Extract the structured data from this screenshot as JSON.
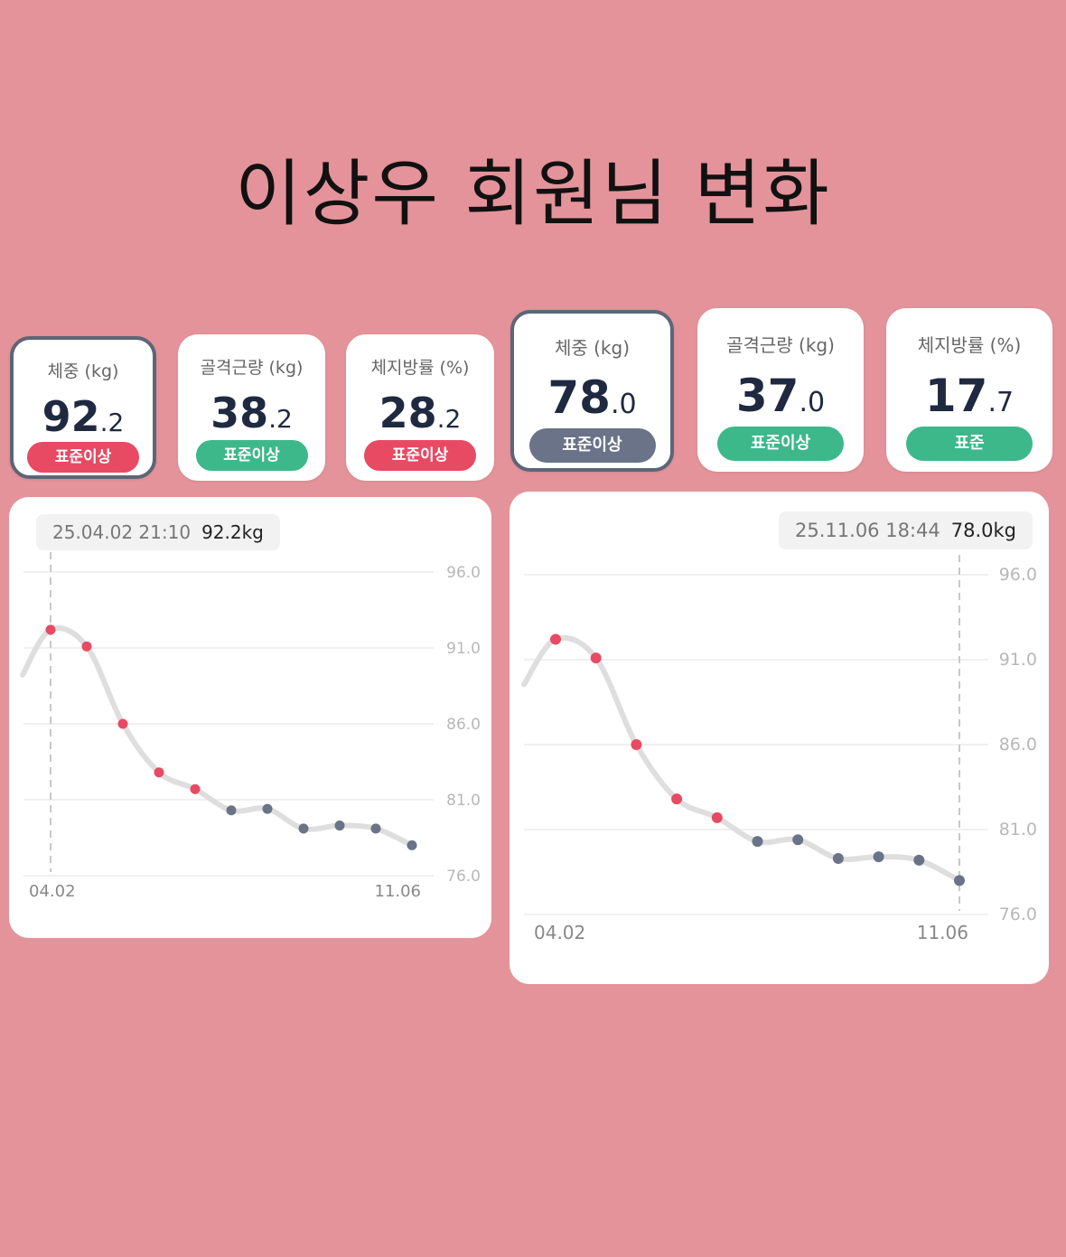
{
  "title": "이상우 회원님 변화",
  "colors": {
    "background": "#e4939a",
    "high": "#e84a63",
    "ok": "#3db88b",
    "neutral": "#6a7387",
    "line": "#dcdcdc"
  },
  "left": {
    "metrics": [
      {
        "label": "체중 (kg)",
        "int": "92",
        "dec": ".2",
        "badge": "표준이상",
        "badge_color": "#e84a63",
        "selected": true
      },
      {
        "label": "골격근량 (kg)",
        "int": "38",
        "dec": ".2",
        "badge": "표준이상",
        "badge_color": "#3db88b",
        "selected": false
      },
      {
        "label": "체지방률 (%)",
        "int": "28",
        "dec": ".2",
        "badge": "표준이상",
        "badge_color": "#e84a63",
        "selected": false
      }
    ],
    "tooltip": {
      "datetime": "25.04.02 21:10",
      "value": "92.2kg"
    },
    "x_start": "04.02",
    "x_end": "11.06",
    "y_ticks": [
      "96.0",
      "91.0",
      "86.0",
      "81.0",
      "76.0"
    ]
  },
  "right": {
    "metrics": [
      {
        "label": "체중 (kg)",
        "int": "78",
        "dec": ".0",
        "badge": "표준이상",
        "badge_color": "#6a7387",
        "selected": true
      },
      {
        "label": "골격근량 (kg)",
        "int": "37",
        "dec": ".0",
        "badge": "표준이상",
        "badge_color": "#3db88b",
        "selected": false
      },
      {
        "label": "체지방률 (%)",
        "int": "17",
        "dec": ".7",
        "badge": "표준",
        "badge_color": "#3db88b",
        "selected": false
      }
    ],
    "tooltip": {
      "datetime": "25.11.06 18:44",
      "value": "78.0kg"
    },
    "x_start": "04.02",
    "x_end": "11.06",
    "y_ticks": [
      "96.0",
      "91.0",
      "86.0",
      "81.0",
      "76.0"
    ]
  },
  "chart_data": [
    {
      "type": "line",
      "ylim": [
        76,
        96
      ],
      "y_ticks": [
        96,
        91,
        86,
        81,
        76
      ],
      "x_labels": [
        "04.02",
        "11.06"
      ],
      "selected_index": 0,
      "values": [
        92.2,
        91.1,
        86.0,
        82.8,
        81.7,
        80.3,
        80.4,
        79.1,
        79.3,
        79.1,
        78.0
      ],
      "point_colors": [
        "#e84a63",
        "#e84a63",
        "#e84a63",
        "#e84a63",
        "#e84a63",
        "#6a7387",
        "#6a7387",
        "#6a7387",
        "#6a7387",
        "#6a7387",
        "#6a7387"
      ]
    },
    {
      "type": "line",
      "ylim": [
        76,
        96
      ],
      "y_ticks": [
        96,
        91,
        86,
        81,
        76
      ],
      "x_labels": [
        "04.02",
        "11.06"
      ],
      "selected_index": 10,
      "values": [
        92.2,
        91.1,
        86.0,
        82.8,
        81.7,
        80.3,
        80.4,
        79.3,
        79.4,
        79.2,
        78.0
      ],
      "point_colors": [
        "#e84a63",
        "#e84a63",
        "#e84a63",
        "#e84a63",
        "#e84a63",
        "#6a7387",
        "#6a7387",
        "#6a7387",
        "#6a7387",
        "#6a7387",
        "#6a7387"
      ]
    }
  ]
}
